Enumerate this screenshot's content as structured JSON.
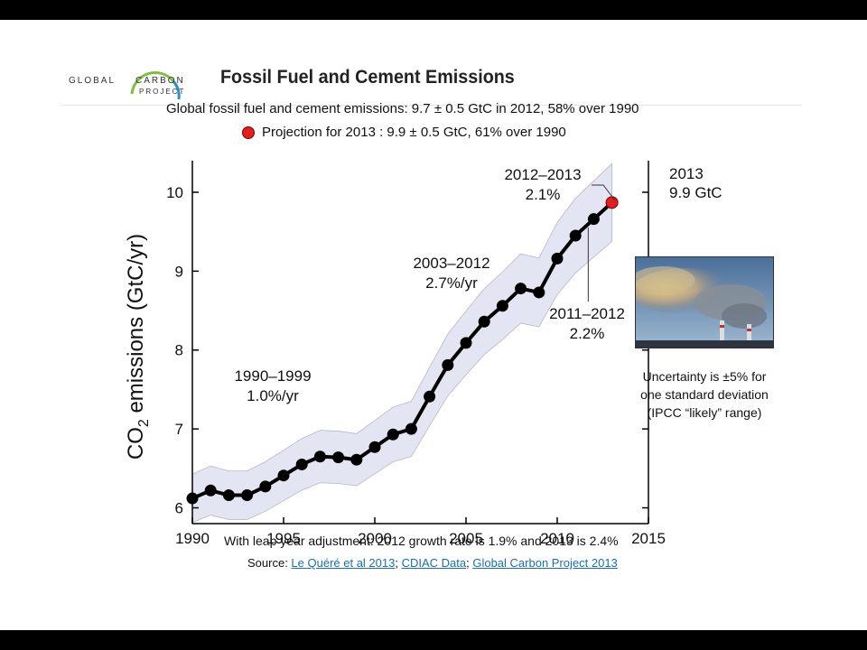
{
  "header": {
    "logo_line1_left": "GLOBAL",
    "logo_line1_right": "CARBON",
    "logo_line2": "PROJECT",
    "title": "Fossil Fuel and Cement Emissions"
  },
  "chart_data": {
    "type": "line",
    "title": "Global fossil fuel and cement emissions: 9.7 ± 0.5 GtC in 2012, 58% over 1990",
    "legend_projection": "Projection for 2013 : 9.9 ± 0.5 GtC, 61% over 1990",
    "ylabel_main": "CO",
    "ylabel_sub": "2",
    "ylabel_rest": " emissions (GtC/yr)",
    "xlabel": "",
    "xlim": [
      1990,
      2015
    ],
    "ylim": [
      5.8,
      10.4
    ],
    "x_ticks": [
      1990,
      1995,
      2000,
      2005,
      2010,
      2015
    ],
    "y_ticks": [
      6,
      7,
      8,
      9,
      10
    ],
    "uncertainty_fraction": 0.05,
    "series": [
      {
        "x": [
          1990,
          1991,
          1992,
          1993,
          1994,
          1995,
          1996,
          1997,
          1998,
          1999,
          2000,
          2001,
          2002,
          2003,
          2004,
          2005,
          2006,
          2007,
          2008,
          2009,
          2010,
          2011,
          2012
        ],
        "values": [
          6.12,
          6.22,
          6.16,
          6.16,
          6.27,
          6.41,
          6.55,
          6.65,
          6.64,
          6.61,
          6.77,
          6.93,
          7.0,
          7.41,
          7.81,
          8.09,
          8.36,
          8.56,
          8.78,
          8.73,
          9.16,
          9.45,
          9.66
        ]
      }
    ],
    "projection": {
      "x": 2013,
      "value": 9.87
    },
    "annotations": [
      {
        "line1": "1990–1999",
        "line2": "1.0%/yr"
      },
      {
        "line1": "2003–2012",
        "line2": "2.7%/yr"
      },
      {
        "line1": "2012–2013",
        "line2": "2.1%"
      },
      {
        "line1": "2011–2012",
        "line2": "2.2%"
      }
    ],
    "colors": {
      "line": "#000000",
      "band": "#e4e5f3",
      "projection": "#e41e1e"
    }
  },
  "side": {
    "year": "2013",
    "value": "9.9 GtC",
    "uncertainty_line1": "Uncertainty is ±5% for",
    "uncertainty_line2": "one standard deviation",
    "uncertainty_line3": "(IPCC “likely” range)"
  },
  "footer": {
    "leap": "With leap year adjustment: 2012 growth rate is 1.9% and 2013 is 2.4%",
    "source_prefix": "Source: ",
    "link1": "Le Quéré et al 2013",
    "sep1": "; ",
    "link2": "CDIAC Data",
    "sep2": "; ",
    "link3": "Global Carbon Project 2013"
  }
}
